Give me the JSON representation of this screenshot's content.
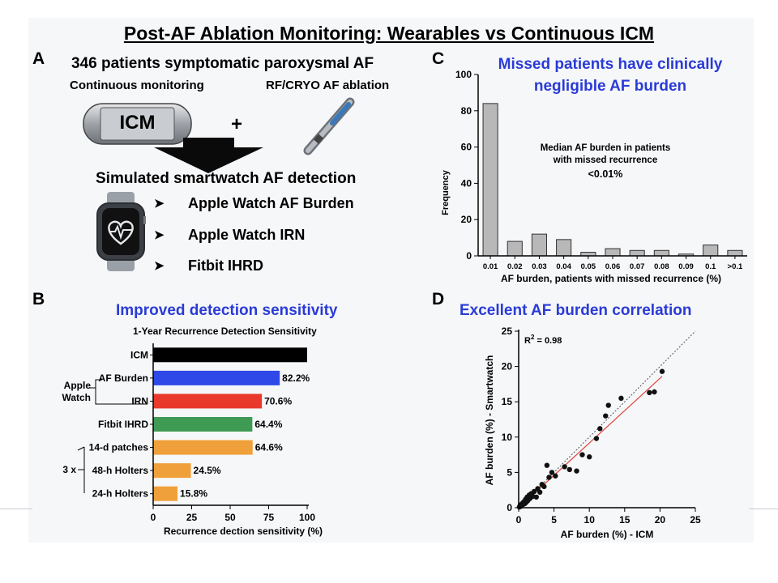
{
  "title": "Post-AF Ablation Monitoring: Wearables vs Continuous ICM",
  "panel_a": {
    "label": "A",
    "cohort": "346 patients symptomatic paroxysmal AF",
    "left_caption": "Continuous monitoring",
    "right_caption": "RF/CRYO AF ablation",
    "device_label": "ICM",
    "plus": "+",
    "simulation": "Simulated smartwatch AF detection",
    "bullet_glyph": "➤",
    "bullets": [
      "Apple Watch AF Burden",
      "Apple Watch IRN",
      "Fitbit IHRD"
    ],
    "icons": {
      "device": "icm-device-icon",
      "catheter": "catheter-icon",
      "watch": "smartwatch-heart-icon",
      "arrow": "down-arrow-icon"
    }
  },
  "panel_b": {
    "label": "B",
    "heading": "Improved detection sensitivity",
    "group_apple": [
      "Apple",
      "Watch"
    ],
    "group_3x": "3 x",
    "chart_data": {
      "type": "bar",
      "orientation": "horizontal",
      "title": "1-Year Recurrence Detection Sensitivity",
      "xlabel": "Recurrence dection sensitivity (%)",
      "xlim": [
        0,
        100
      ],
      "xticks": [
        0,
        25,
        50,
        75,
        100
      ],
      "categories": [
        "ICM",
        "AF Burden",
        "IRN",
        "Fitbit IHRD",
        "14-d patches",
        "48-h Holters",
        "24-h Holters"
      ],
      "values": [
        100,
        82.2,
        70.6,
        64.4,
        64.6,
        24.5,
        15.8
      ],
      "value_labels": [
        "",
        "82.2%",
        "70.6%",
        "64.4%",
        "64.6%",
        "24.5%",
        "15.8%"
      ],
      "colors": [
        "#000000",
        "#2e49e8",
        "#e8392b",
        "#3f9a54",
        "#f0a03a",
        "#f0a03a",
        "#f0a03a"
      ]
    }
  },
  "panel_c": {
    "label": "C",
    "heading": [
      "Missed patients have clinically",
      "negligible AF burden"
    ],
    "chart_data": {
      "type": "bar",
      "title": "",
      "xlabel": "AF burden, patients with missed recurrence (%)",
      "ylabel": "Frequency",
      "ylim": [
        0,
        100
      ],
      "yticks": [
        0,
        20,
        40,
        60,
        80,
        100
      ],
      "categories": [
        "0.01",
        "0.02",
        "0.03",
        "0.04",
        "0.05",
        "0.06",
        "0.07",
        "0.08",
        "0.09",
        "0.1",
        ">0.1"
      ],
      "values": [
        84,
        8,
        12,
        9,
        2,
        4,
        3,
        3,
        1,
        6,
        3
      ],
      "bar_color": "#b8b8b8",
      "annotation": [
        "Median AF burden in patients",
        "with missed recurrence",
        "<0.01%"
      ]
    }
  },
  "panel_d": {
    "label": "D",
    "heading": "Excellent AF burden correlation",
    "chart_data": {
      "type": "scatter",
      "xlabel": "AF burden (%) - ICM",
      "ylabel": "AF burden (%) - Smartwatch",
      "xlim": [
        0,
        25
      ],
      "ylim": [
        0,
        25
      ],
      "xticks": [
        0,
        5,
        10,
        15,
        20,
        25
      ],
      "yticks": [
        0,
        5,
        10,
        15,
        20,
        25
      ],
      "r2_prefix": "R",
      "r2_sup": "2",
      "r2_value": " = 0.98",
      "identity_line": [
        [
          0,
          0
        ],
        [
          25,
          25
        ]
      ],
      "fit_line": [
        [
          0,
          0
        ],
        [
          20.3,
          18.6
        ]
      ],
      "fit_color": "#e0443a",
      "points": [
        [
          0.1,
          0.1
        ],
        [
          0.2,
          0.3
        ],
        [
          0.3,
          0.2
        ],
        [
          0.4,
          0.5
        ],
        [
          0.5,
          0.4
        ],
        [
          0.6,
          0.7
        ],
        [
          0.7,
          0.5
        ],
        [
          0.8,
          0.9
        ],
        [
          0.9,
          0.6
        ],
        [
          1.0,
          1.2
        ],
        [
          1.1,
          0.8
        ],
        [
          1.2,
          1.5
        ],
        [
          1.3,
          1.0
        ],
        [
          1.5,
          1.8
        ],
        [
          1.6,
          1.3
        ],
        [
          1.8,
          2.0
        ],
        [
          2.0,
          1.6
        ],
        [
          2.2,
          2.3
        ],
        [
          2.5,
          1.5
        ],
        [
          2.7,
          2.7
        ],
        [
          3.0,
          2.2
        ],
        [
          3.3,
          3.3
        ],
        [
          3.6,
          3.0
        ],
        [
          4.0,
          6.0
        ],
        [
          4.3,
          4.3
        ],
        [
          4.7,
          5.0
        ],
        [
          5.2,
          4.5
        ],
        [
          6.5,
          5.8
        ],
        [
          7.2,
          5.4
        ],
        [
          8.2,
          5.2
        ],
        [
          9.0,
          7.5
        ],
        [
          10.0,
          7.2
        ],
        [
          11.0,
          9.8
        ],
        [
          11.5,
          11.2
        ],
        [
          12.3,
          13.0
        ],
        [
          12.7,
          14.5
        ],
        [
          14.5,
          15.5
        ],
        [
          18.5,
          16.3
        ],
        [
          19.2,
          16.4
        ],
        [
          20.3,
          19.3
        ]
      ]
    }
  }
}
